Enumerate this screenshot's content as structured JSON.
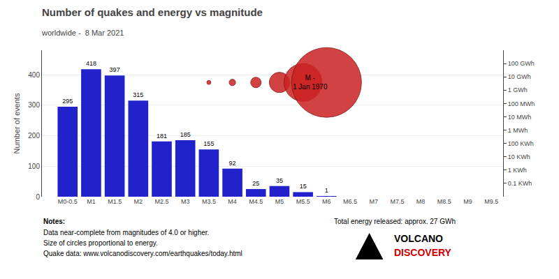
{
  "chart_data": {
    "type": "bar",
    "title": "Number of quakes and energy vs magnitude",
    "subtitle": "worldwide -  8 Mar 2021",
    "categories": [
      "M0-0.5",
      "M1",
      "M1.5",
      "M2",
      "M2.5",
      "M3",
      "M3.5",
      "M4",
      "M4.5",
      "M5",
      "M5.5",
      "M6",
      "M6.5",
      "M7",
      "M7.5",
      "M8",
      "M8.5",
      "M9",
      "M9.5"
    ],
    "values": [
      295,
      418,
      397,
      315,
      181,
      185,
      155,
      92,
      25,
      35,
      15,
      1,
      0,
      0,
      0,
      0,
      0,
      0,
      0
    ],
    "value_labels": [
      "295",
      "418",
      "397",
      "315",
      "181",
      "185",
      "155",
      "92",
      "25",
      "35",
      "15",
      "1",
      null,
      null,
      null,
      null,
      null,
      null,
      null
    ],
    "data_labels": true,
    "color": "#2222cc",
    "ylabel": "Number of events",
    "ylim": [
      0,
      480
    ],
    "yticks": [
      0,
      100,
      200,
      300,
      400
    ],
    "grid": true,
    "log": "y2",
    "y2lim": [
      0.01,
      1000000000
    ],
    "y2ticks": [
      {
        "value": 0.1,
        "label": "0.1 KWh"
      },
      {
        "value": 1,
        "label": "1 KWh"
      },
      {
        "value": 10,
        "label": "10 KWh"
      },
      {
        "value": 100,
        "label": "100 KWh"
      },
      {
        "value": 1000,
        "label": "1 MWh"
      },
      {
        "value": 10000,
        "label": "10 MWh"
      },
      {
        "value": 100000,
        "label": "100 MWh"
      },
      {
        "value": 1000000,
        "label": "1 GWh"
      },
      {
        "value": 10000000,
        "label": "10 GWh"
      },
      {
        "value": 100000000,
        "label": "100 GWh"
      }
    ],
    "bubbles": {
      "x": [
        "M3.5",
        "M4",
        "M4.5",
        "M5",
        "M5.5",
        "M6"
      ],
      "sizes": [
        7,
        11,
        18,
        35,
        65,
        120
      ],
      "color": "#cc2222"
    },
    "annotation": {
      "text": "M -\n1 Jan 1970",
      "x": "M5.5"
    },
    "notes_title": "Notes:",
    "notes": [
      "Data near-complete from magnitudes of 4.0 or higher.",
      "Size of circles proportional to energy.",
      "Quake data: www.volcanodiscovery.com/earthquakes/today.html"
    ],
    "total_energy": "Total energy released: approx. 27 GWh",
    "logo": {
      "texts": [
        "VOLCANO",
        "DISCOVERY"
      ],
      "colors": [
        "#000000",
        "#cc0000"
      ]
    }
  }
}
